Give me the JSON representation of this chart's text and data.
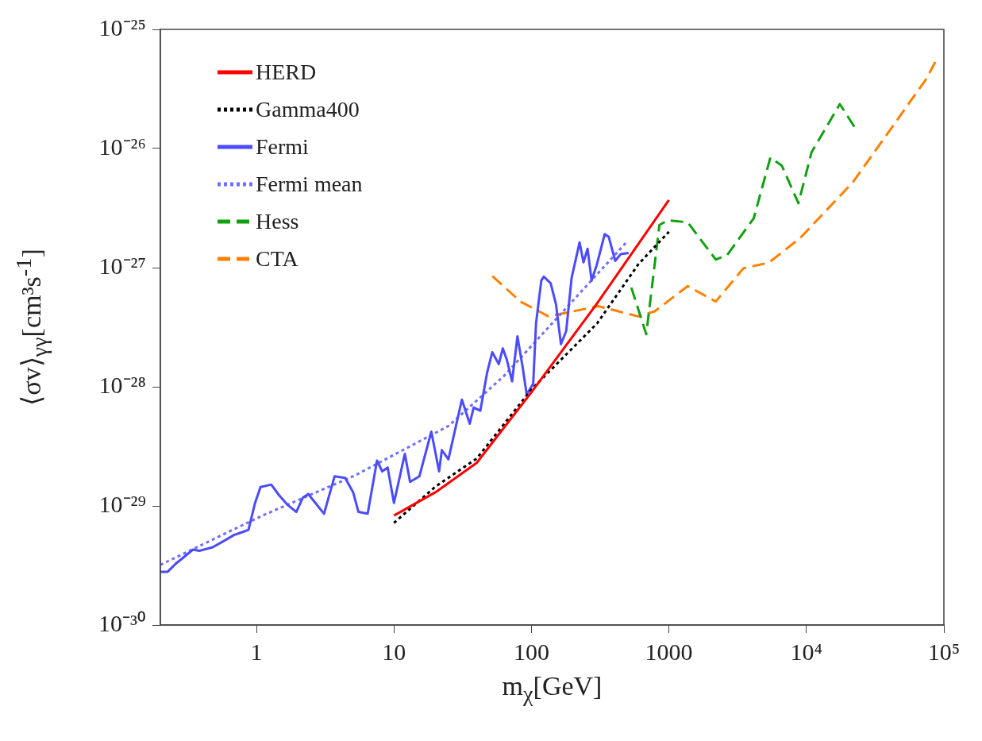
{
  "chart_data": {
    "type": "line",
    "xlabel": "m$_{χ}$[GeV]",
    "ylabel": "⟨σv⟩$_{γγ}$[cm³s$^{-1}$]",
    "log": "xy",
    "xlim": [
      0.2,
      100000
    ],
    "ylim": [
      1e-30,
      1e-25
    ],
    "xticks": [
      1,
      10,
      100,
      1000,
      {
        "value": 10000,
        "label": "10⁴"
      },
      {
        "value": 100000,
        "label": "10⁵"
      }
    ],
    "yticks": [
      {
        "value": 1e-30,
        "label": "10⁻³⁰"
      },
      {
        "value": 1e-29,
        "label": "10⁻²⁹"
      },
      {
        "value": 1e-28,
        "label": "10⁻²⁸"
      },
      {
        "value": 1e-27,
        "label": "10⁻²⁷"
      },
      {
        "value": 1e-26,
        "label": "10⁻²⁶"
      },
      {
        "value": 1e-25,
        "label": "10⁻²⁵"
      }
    ],
    "legend": "top left",
    "marker": "none",
    "grid": false,
    "series": [
      {
        "name": "HERD",
        "color": "#ff0000",
        "line_style": "solid",
        "x": [
          10,
          20,
          40,
          100,
          300,
          1000
        ],
        "values": [
          8.3e-30,
          1.3e-29,
          2.3e-29,
          9e-29,
          5e-28,
          3.7e-27
        ]
      },
      {
        "name": "Gamma400",
        "color": "#000000",
        "line_style": "dotted",
        "x": [
          10,
          20,
          40,
          100,
          300,
          600,
          1000
        ],
        "values": [
          7.2e-30,
          1.45e-29,
          2.5e-29,
          9.5e-29,
          3.4e-28,
          1.07e-27,
          2e-27
        ]
      },
      {
        "name": "Fermi",
        "color": "#4b4bff",
        "line_style": "solid",
        "x": [
          0.2,
          0.226,
          0.258,
          0.295,
          0.345,
          0.385,
          0.481,
          0.6,
          0.686,
          0.782,
          0.875,
          0.977,
          1.07,
          1.28,
          1.46,
          1.67,
          1.95,
          2.17,
          2.38,
          3.1,
          3.7,
          4.42,
          5.05,
          5.52,
          6.44,
          7.53,
          8.22,
          9.0,
          10.0,
          12.0,
          13.1,
          15.3,
          18.7,
          21.3,
          22.3,
          24.9,
          31.2,
          35.6,
          38.0,
          42.5,
          47.5,
          51.9,
          57.9,
          61.9,
          66.2,
          72.3,
          79.1,
          86.5,
          92.3,
          103,
          108,
          118,
          123,
          138,
          151,
          164,
          179,
          196,
          224,
          239,
          256,
          274,
          299,
          341,
          365,
          407,
          446,
          509
        ],
        "values": [
          2.8e-30,
          2.8e-30,
          3.26e-30,
          3.7e-30,
          4.3e-30,
          4.2e-30,
          4.5e-30,
          5.2e-30,
          5.7e-30,
          6e-30,
          6.3e-30,
          1.06e-29,
          1.44e-29,
          1.51e-29,
          1.23e-29,
          1.03e-29,
          8.9e-30,
          1.17e-29,
          1.26e-29,
          8.6e-30,
          1.77e-29,
          1.72e-29,
          1.3e-29,
          8.9e-30,
          8.6e-30,
          2.4e-29,
          1.95e-29,
          2.1e-29,
          1.06e-29,
          2.73e-29,
          1.59e-29,
          1.77e-29,
          4.2e-29,
          1.95e-29,
          2.94e-29,
          2.46e-29,
          7.8e-29,
          4.9e-29,
          6.7e-29,
          6.3e-29,
          1.3e-28,
          1.95e-28,
          1.55e-28,
          2.1e-28,
          1.69e-28,
          1.11e-28,
          2.65e-28,
          1.44e-28,
          8.6e-29,
          1.06e-28,
          3.4e-28,
          7.8e-28,
          8.4e-28,
          7.4e-28,
          4.9e-28,
          2.28e-28,
          2.94e-28,
          8.2e-28,
          1.63e-27,
          1.11e-27,
          1.44e-27,
          7.8e-28,
          1.06e-27,
          1.91e-27,
          1.81e-27,
          1.14e-27,
          1.3e-27,
          1.33e-27
        ]
      },
      {
        "name": "Fermi mean",
        "color": "#6f6fff",
        "line_style": "dotted",
        "x": [
          0.2,
          1.08,
          5.2,
          25,
          63,
          490
        ],
        "values": [
          3.2e-30,
          8.2e-30,
          1.8e-29,
          4.7e-29,
          1.23e-28,
          1.63e-27
        ]
      },
      {
        "name": "Hess",
        "color": "#11a011",
        "line_style": "dashed",
        "x": [
          533,
          684,
          853,
          980,
          1370,
          2190,
          2660,
          4140,
          5470,
          6620,
          8750,
          10900,
          17500,
          22500
        ],
        "values": [
          6.8e-28,
          2.76e-28,
          2.28e-27,
          2.5e-27,
          2.4e-27,
          1.17e-27,
          1.28e-27,
          2.6e-27,
          8.4e-27,
          7.2e-27,
          3.47e-27,
          9.3e-27,
          2.36e-26,
          1.5e-26
        ]
      },
      {
        "name": "CTA",
        "color": "#ff8000",
        "line_style": "dashed",
        "x": [
          52,
          83,
          133,
          306,
          596,
          788,
          1370,
          2190,
          3490,
          5320,
          9000,
          21900,
          74000,
          90000
        ],
        "values": [
          8.5e-28,
          5.2e-28,
          3.9e-28,
          4.75e-28,
          3.9e-28,
          4.3e-28,
          7e-28,
          5.2e-28,
          9.9e-28,
          1.1e-27,
          1.77e-27,
          5.25e-27,
          3.8e-26,
          5.8e-26
        ]
      }
    ]
  }
}
